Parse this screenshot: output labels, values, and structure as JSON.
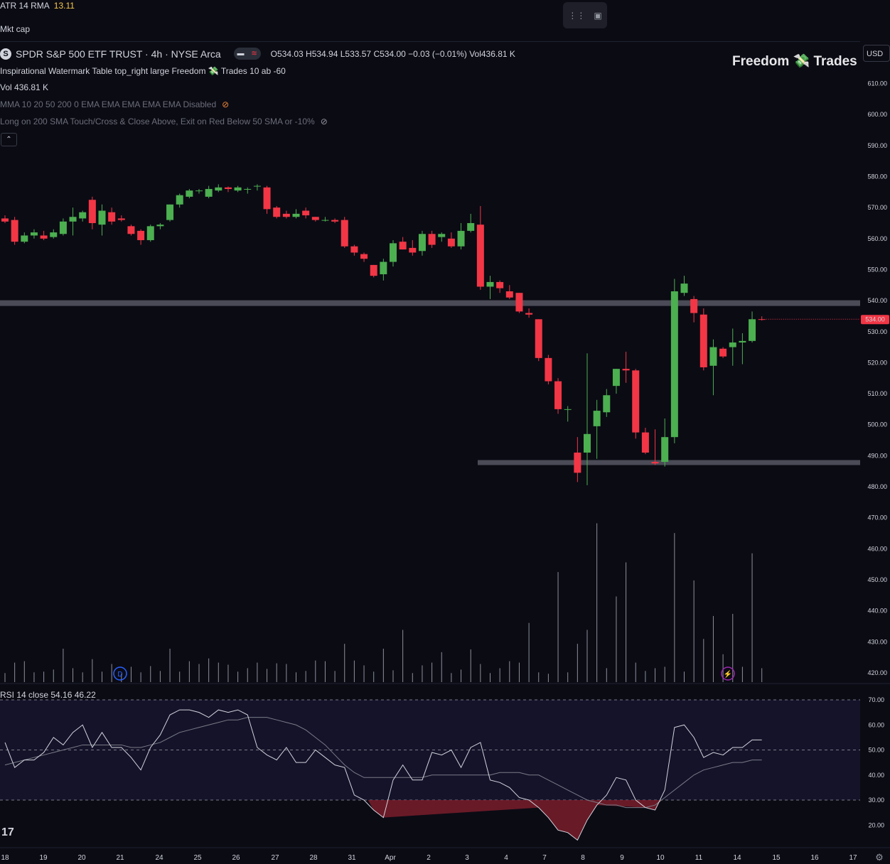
{
  "header": {
    "atr_label": "ATR 14 RMA",
    "atr_value": "13.11",
    "mkt_cap": "Mkt cap",
    "symbol_logo": "S",
    "symbol": "SPDR S&P 500 ETF TRUST · 4h · NYSE Arca",
    "ohlc": "O534.03  H534.94  L533.57  C534.00  −0.03 (−0.01%)  Vol436.81 K",
    "watermark_line": "Inspirational Watermark Table top_right large Freedom 💸 Trades 10 ab -60",
    "vol_line": "Vol  436.81 K",
    "mma_line": "MMA 10 20 50 200 0 EMA EMA EMA EMA EMA Disabled",
    "strategy_line": "Long on 200 SMA Touch/Cross & Close Above, Exit on Red Below 50 SMA or -10%",
    "brand": "Freedom 💸 Trades",
    "currency": "USD",
    "rsi_label": "RSI 14 close  54.16  46.22",
    "eye_icon": "eye-crossed-icon",
    "tv_logo": "17"
  },
  "colors": {
    "up": "#4caf50",
    "down": "#f23645",
    "background": "#0b0b14",
    "price_tag": "#f23645"
  },
  "chart_data": [
    {
      "type": "candlestick",
      "title": "SPDR S&P 500 ETF TRUST · 4h · NYSE Arca",
      "ylim": [
        417,
        617
      ],
      "y_ticks": [
        "610.00",
        "600.00",
        "590.00",
        "580.00",
        "570.00",
        "560.00",
        "550.00",
        "540.00",
        "530.00",
        "520.00",
        "510.00",
        "500.00",
        "490.00",
        "480.00",
        "470.00",
        "460.00",
        "450.00",
        "440.00",
        "430.00",
        "420.00"
      ],
      "last_price": "534.00",
      "horizontal_levels": [
        539.2,
        487.9
      ],
      "x_tick_labels": [
        "18",
        "19",
        "20",
        "21",
        "24",
        "25",
        "26",
        "27",
        "28",
        "31",
        "Apr",
        "2",
        "3",
        "4",
        "7",
        "8",
        "9",
        "10",
        "11",
        "14",
        "15",
        "16",
        "17"
      ],
      "candles": [
        {
          "o": 566.5,
          "h": 567.5,
          "l": 565.0,
          "c": 565.5
        },
        {
          "o": 566.0,
          "h": 567.0,
          "l": 558.0,
          "c": 559.0
        },
        {
          "o": 559.0,
          "h": 562.0,
          "l": 558.5,
          "c": 561.0
        },
        {
          "o": 561.0,
          "h": 563.0,
          "l": 560.0,
          "c": 562.0
        },
        {
          "o": 561.0,
          "h": 562.5,
          "l": 559.5,
          "c": 560.0
        },
        {
          "o": 560.5,
          "h": 563.0,
          "l": 560.0,
          "c": 562.0
        },
        {
          "o": 561.5,
          "h": 566.5,
          "l": 561.0,
          "c": 565.5
        },
        {
          "o": 565.5,
          "h": 570.0,
          "l": 561.0,
          "c": 567.0
        },
        {
          "o": 566.5,
          "h": 569.0,
          "l": 565.5,
          "c": 568.5
        },
        {
          "o": 572.5,
          "h": 573.5,
          "l": 563.0,
          "c": 565.0
        },
        {
          "o": 564.5,
          "h": 571.0,
          "l": 561.0,
          "c": 569.0
        },
        {
          "o": 568.5,
          "h": 570.0,
          "l": 564.5,
          "c": 565.5
        },
        {
          "o": 566.5,
          "h": 567.5,
          "l": 565.5,
          "c": 566.0
        },
        {
          "o": 564.0,
          "h": 564.5,
          "l": 561.0,
          "c": 561.5
        },
        {
          "o": 562.5,
          "h": 563.0,
          "l": 558.0,
          "c": 559.5
        },
        {
          "o": 559.5,
          "h": 564.5,
          "l": 559.0,
          "c": 564.0
        },
        {
          "o": 564.0,
          "h": 565.0,
          "l": 563.0,
          "c": 564.5
        },
        {
          "o": 566.0,
          "h": 571.0,
          "l": 565.5,
          "c": 571.0
        },
        {
          "o": 571.0,
          "h": 574.5,
          "l": 570.0,
          "c": 574.0
        },
        {
          "o": 573.5,
          "h": 576.0,
          "l": 573.0,
          "c": 575.5
        },
        {
          "o": 575.5,
          "h": 576.0,
          "l": 574.5,
          "c": 575.5
        },
        {
          "o": 573.5,
          "h": 577.0,
          "l": 573.0,
          "c": 576.0
        },
        {
          "o": 575.5,
          "h": 577.5,
          "l": 575.0,
          "c": 576.5
        },
        {
          "o": 576.5,
          "h": 576.8,
          "l": 575.0,
          "c": 576.0
        },
        {
          "o": 575.5,
          "h": 577.0,
          "l": 575.0,
          "c": 576.5
        },
        {
          "o": 576.0,
          "h": 576.5,
          "l": 574.5,
          "c": 576.0
        },
        {
          "o": 577.0,
          "h": 577.5,
          "l": 575.5,
          "c": 577.0
        },
        {
          "o": 576.5,
          "h": 577.0,
          "l": 568.0,
          "c": 569.5
        },
        {
          "o": 570.0,
          "h": 570.5,
          "l": 566.5,
          "c": 567.0
        },
        {
          "o": 568.0,
          "h": 569.0,
          "l": 566.5,
          "c": 567.0
        },
        {
          "o": 567.0,
          "h": 569.5,
          "l": 566.5,
          "c": 568.0
        },
        {
          "o": 569.0,
          "h": 570.0,
          "l": 566.5,
          "c": 567.5
        },
        {
          "o": 567.0,
          "h": 567.0,
          "l": 565.5,
          "c": 566.0
        },
        {
          "o": 566.0,
          "h": 567.0,
          "l": 565.5,
          "c": 566.0
        },
        {
          "o": 566.0,
          "h": 566.5,
          "l": 565.0,
          "c": 565.5
        },
        {
          "o": 566.0,
          "h": 567.0,
          "l": 557.0,
          "c": 557.5
        },
        {
          "o": 557.5,
          "h": 558.0,
          "l": 554.5,
          "c": 555.5
        },
        {
          "o": 555.0,
          "h": 555.5,
          "l": 552.5,
          "c": 553.5
        },
        {
          "o": 551.5,
          "h": 551.5,
          "l": 547.5,
          "c": 548.0
        },
        {
          "o": 548.5,
          "h": 553.5,
          "l": 546.5,
          "c": 552.5
        },
        {
          "o": 552.5,
          "h": 559.5,
          "l": 551.0,
          "c": 558.5
        },
        {
          "o": 559.0,
          "h": 560.5,
          "l": 556.5,
          "c": 556.5
        },
        {
          "o": 557.0,
          "h": 559.5,
          "l": 554.5,
          "c": 555.5
        },
        {
          "o": 556.0,
          "h": 562.5,
          "l": 554.5,
          "c": 561.5
        },
        {
          "o": 561.5,
          "h": 562.5,
          "l": 557.0,
          "c": 558.0
        },
        {
          "o": 560.5,
          "h": 562.0,
          "l": 559.0,
          "c": 561.5
        },
        {
          "o": 560.0,
          "h": 562.0,
          "l": 557.0,
          "c": 557.5
        },
        {
          "o": 557.5,
          "h": 565.0,
          "l": 556.5,
          "c": 562.5
        },
        {
          "o": 562.5,
          "h": 568.0,
          "l": 562.0,
          "c": 565.0
        },
        {
          "o": 564.5,
          "h": 570.5,
          "l": 543.5,
          "c": 544.5
        },
        {
          "o": 544.5,
          "h": 548.0,
          "l": 540.5,
          "c": 546.0
        },
        {
          "o": 546.0,
          "h": 546.5,
          "l": 542.5,
          "c": 544.0
        },
        {
          "o": 543.0,
          "h": 545.0,
          "l": 540.5,
          "c": 541.0
        },
        {
          "o": 542.5,
          "h": 542.5,
          "l": 536.0,
          "c": 536.5
        },
        {
          "o": 536.0,
          "h": 537.5,
          "l": 534.5,
          "c": 535.5
        },
        {
          "o": 534.0,
          "h": 534.0,
          "l": 520.5,
          "c": 521.5
        },
        {
          "o": 521.5,
          "h": 522.5,
          "l": 513.0,
          "c": 514.0
        },
        {
          "o": 514.0,
          "h": 515.0,
          "l": 503.5,
          "c": 505.0
        },
        {
          "o": 505.0,
          "h": 506.0,
          "l": 501.0,
          "c": 505.0
        },
        {
          "o": 491.0,
          "h": 496.0,
          "l": 481.5,
          "c": 484.5
        },
        {
          "o": 491.0,
          "h": 523.0,
          "l": 480.5,
          "c": 497.0
        },
        {
          "o": 499.5,
          "h": 508.0,
          "l": 489.0,
          "c": 504.5
        },
        {
          "o": 504.0,
          "h": 511.5,
          "l": 502.5,
          "c": 509.5
        },
        {
          "o": 512.5,
          "h": 518.0,
          "l": 510.0,
          "c": 518.0
        },
        {
          "o": 518.0,
          "h": 523.5,
          "l": 513.5,
          "c": 517.5
        },
        {
          "o": 517.5,
          "h": 518.0,
          "l": 495.5,
          "c": 497.5
        },
        {
          "o": 497.5,
          "h": 499.0,
          "l": 490.5,
          "c": 491.0
        },
        {
          "o": 488.0,
          "h": 498.5,
          "l": 487.0,
          "c": 487.5
        },
        {
          "o": 488.0,
          "h": 502.0,
          "l": 486.5,
          "c": 496.0
        },
        {
          "o": 496.0,
          "h": 547.0,
          "l": 494.0,
          "c": 543.0
        },
        {
          "o": 542.5,
          "h": 548.0,
          "l": 541.5,
          "c": 545.5
        },
        {
          "o": 540.5,
          "h": 541.5,
          "l": 533.0,
          "c": 536.0
        },
        {
          "o": 535.5,
          "h": 537.5,
          "l": 517.5,
          "c": 518.5
        },
        {
          "o": 519.0,
          "h": 527.5,
          "l": 509.5,
          "c": 525.0
        },
        {
          "o": 524.5,
          "h": 525.0,
          "l": 521.5,
          "c": 522.0
        },
        {
          "o": 525.0,
          "h": 531.0,
          "l": 519.0,
          "c": 526.5
        },
        {
          "o": 526.5,
          "h": 529.5,
          "l": 519.5,
          "c": 527.0
        },
        {
          "o": 527.0,
          "h": 536.5,
          "l": 526.5,
          "c": 534.0
        },
        {
          "o": 534.03,
          "h": 534.94,
          "l": 533.57,
          "c": 534.0
        }
      ],
      "volumes": [
        13,
        28,
        30,
        14,
        15,
        18,
        48,
        20,
        14,
        33,
        15,
        26,
        12,
        22,
        14,
        23,
        16,
        48,
        15,
        30,
        26,
        34,
        28,
        25,
        15,
        20,
        28,
        19,
        27,
        26,
        14,
        16,
        31,
        30,
        16,
        55,
        31,
        24,
        15,
        48,
        17,
        75,
        13,
        24,
        28,
        43,
        13,
        18,
        47,
        26,
        13,
        20,
        30,
        28,
        85,
        14,
        12,
        158,
        14,
        55,
        75,
        228,
        20,
        123,
        172,
        28,
        16,
        20,
        22,
        214,
        15,
        146,
        62,
        95,
        40,
        98,
        22,
        185,
        20
      ],
      "rsi": {
        "label": "RSI 14 close",
        "ylim": [
          15,
          72
        ],
        "y_ticks": [
          "70.00",
          "60.00",
          "50.00",
          "40.00",
          "30.00",
          "20.00"
        ],
        "upper_band": 70,
        "mid_band": 50,
        "lower_band": 30,
        "rsi_values": [
          53,
          43,
          46,
          46,
          49,
          55,
          52,
          57,
          60,
          51,
          57,
          51,
          51,
          47,
          42,
          51,
          56,
          64,
          66,
          66,
          65,
          63,
          66,
          65,
          66,
          64,
          51,
          48,
          46,
          51,
          45,
          45,
          50,
          47,
          44,
          43,
          32,
          30,
          26,
          23,
          38,
          44,
          38,
          38,
          49,
          48,
          50,
          43,
          51,
          53,
          38,
          37,
          35,
          31,
          30,
          27,
          23,
          18,
          17,
          14,
          22,
          28,
          32,
          39,
          38,
          30,
          27,
          26,
          34,
          59,
          60,
          55,
          47,
          49,
          48,
          51,
          51,
          54,
          54
        ],
        "ma_values": [
          44,
          45,
          46,
          47,
          48,
          49,
          50,
          51,
          52,
          52,
          52,
          52,
          52,
          51,
          51,
          52,
          53,
          55,
          57,
          58,
          59,
          60,
          61,
          62,
          62,
          63,
          63,
          63,
          62,
          61,
          60,
          58,
          55,
          52,
          48,
          44,
          41,
          39,
          39,
          39,
          39,
          39,
          39,
          39,
          40,
          40,
          40,
          40,
          40,
          40,
          40,
          41,
          41,
          41,
          40,
          40,
          38,
          36,
          34,
          32,
          30,
          29,
          28,
          28,
          27,
          27,
          27,
          28,
          31,
          34,
          37,
          40,
          42,
          43,
          44,
          45,
          45,
          46,
          46
        ]
      }
    }
  ]
}
